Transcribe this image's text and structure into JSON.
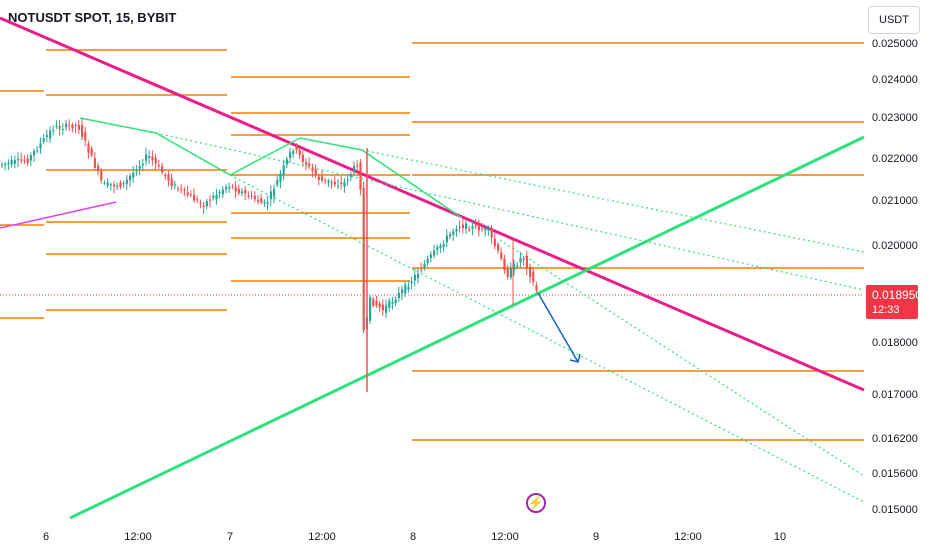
{
  "header": {
    "title": "NOTUSDT SPOT, 15, BYBIT",
    "currency_button": "USDT"
  },
  "price_tag": {
    "price": "0.018950",
    "countdown": "12:33"
  },
  "icons": {
    "bolt": "lightning-bolt-icon"
  },
  "colors": {
    "up": "#26a69a",
    "down": "#ef5350",
    "trend_pink": "#e91e8c",
    "trend_green": "#2ee27a",
    "level_orange": "#f57c00",
    "projection": "#1565c0"
  },
  "chart_data": {
    "type": "candlestick",
    "y_axis": {
      "ticks": [
        "0.025000",
        "0.024000",
        "0.023000",
        "0.022000",
        "0.021000",
        "0.020000",
        "0.018000",
        "0.017000",
        "0.016200",
        "0.015600",
        "0.015000"
      ],
      "range": [
        0.0148,
        0.0254
      ]
    },
    "x_axis": {
      "ticks": [
        "6",
        "12:00",
        "7",
        "12:00",
        "8",
        "12:00",
        "9",
        "12:00",
        "10"
      ]
    },
    "current_price": 0.01895,
    "grid": false,
    "legend": "none"
  }
}
